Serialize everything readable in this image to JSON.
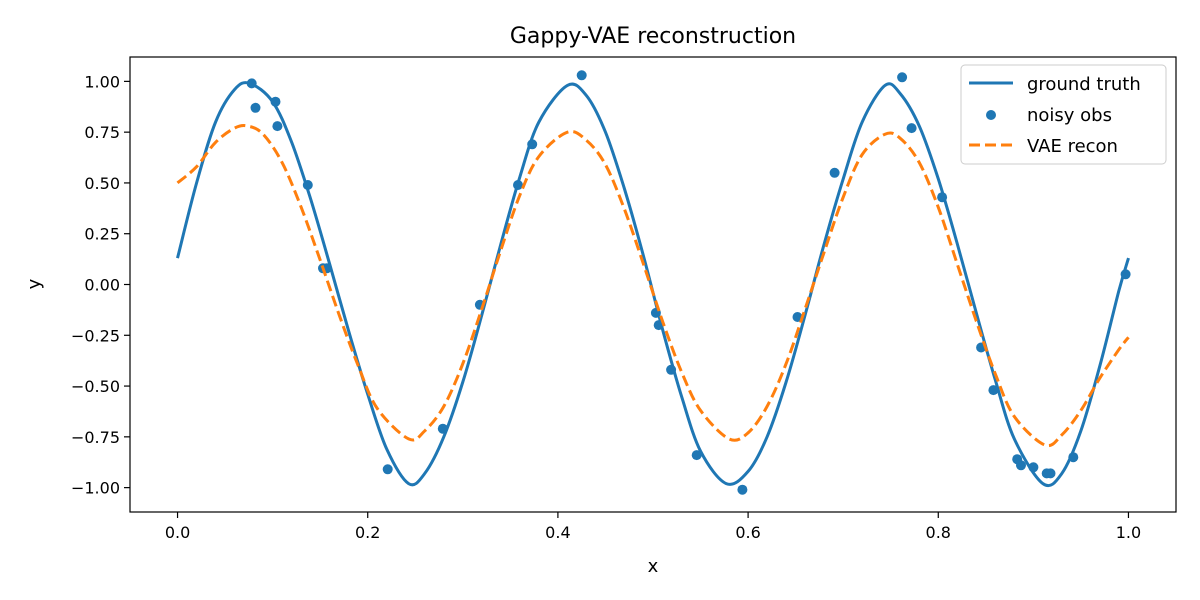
{
  "chart_data": {
    "type": "line",
    "title": "Gappy-VAE reconstruction",
    "xlabel": "x",
    "ylabel": "y",
    "xlim": [
      -0.05,
      1.05
    ],
    "ylim": [
      -1.12,
      1.12
    ],
    "x_ticks": [
      0.0,
      0.2,
      0.4,
      0.6,
      0.8,
      1.0
    ],
    "x_tick_labels": [
      "0.0",
      "0.2",
      "0.4",
      "0.6",
      "0.8",
      "1.0"
    ],
    "y_ticks": [
      -1.0,
      -0.75,
      -0.5,
      -0.25,
      0.0,
      0.25,
      0.5,
      0.75,
      1.0
    ],
    "y_tick_labels": [
      "−1.00",
      "−0.75",
      "−0.50",
      "−0.25",
      "0.00",
      "0.25",
      "0.50",
      "0.75",
      "1.00"
    ],
    "grid": false,
    "legend_position": "top-right",
    "series": [
      {
        "name": "ground truth",
        "kind": "line",
        "color": "#1f77b4",
        "style": "solid",
        "x": [
          0.0,
          0.02,
          0.04,
          0.06,
          0.076,
          0.1,
          0.12,
          0.14,
          0.16,
          0.18,
          0.2,
          0.22,
          0.243,
          0.26,
          0.28,
          0.3,
          0.32,
          0.34,
          0.36,
          0.38,
          0.41,
          0.43,
          0.45,
          0.47,
          0.49,
          0.51,
          0.53,
          0.55,
          0.577,
          0.6,
          0.62,
          0.64,
          0.66,
          0.68,
          0.7,
          0.72,
          0.744,
          0.76,
          0.78,
          0.8,
          0.82,
          0.84,
          0.86,
          0.88,
          0.91,
          0.93,
          0.95,
          0.97,
          0.99,
          1.0
        ],
        "y": [
          0.13,
          0.5,
          0.8,
          0.96,
          0.99,
          0.9,
          0.7,
          0.42,
          0.1,
          -0.23,
          -0.54,
          -0.81,
          -0.98,
          -0.93,
          -0.75,
          -0.48,
          -0.15,
          0.2,
          0.53,
          0.8,
          0.98,
          0.93,
          0.75,
          0.47,
          0.14,
          -0.22,
          -0.55,
          -0.82,
          -0.98,
          -0.92,
          -0.75,
          -0.48,
          -0.15,
          0.2,
          0.52,
          0.8,
          0.98,
          0.94,
          0.78,
          0.52,
          0.2,
          -0.14,
          -0.47,
          -0.76,
          -0.98,
          -0.93,
          -0.72,
          -0.4,
          -0.03,
          0.13
        ]
      },
      {
        "name": "noisy obs",
        "kind": "scatter",
        "color": "#1f77b4",
        "x": [
          0.078,
          0.082,
          0.103,
          0.105,
          0.137,
          0.153,
          0.157,
          0.221,
          0.279,
          0.318,
          0.358,
          0.373,
          0.425,
          0.503,
          0.506,
          0.519,
          0.546,
          0.594,
          0.652,
          0.691,
          0.762,
          0.772,
          0.804,
          0.845,
          0.858,
          0.883,
          0.887,
          0.9,
          0.914,
          0.918,
          0.942,
          0.997
        ],
        "y": [
          0.99,
          0.87,
          0.9,
          0.78,
          0.49,
          0.08,
          0.08,
          -0.91,
          -0.71,
          -0.1,
          0.49,
          0.69,
          1.03,
          -0.14,
          -0.2,
          -0.42,
          -0.84,
          -1.01,
          -0.16,
          0.55,
          1.02,
          0.77,
          0.43,
          -0.31,
          -0.52,
          -0.86,
          -0.89,
          -0.9,
          -0.93,
          -0.93,
          -0.85,
          0.05
        ]
      },
      {
        "name": "VAE recon",
        "kind": "line",
        "color": "#ff7f0e",
        "style": "dashed",
        "x": [
          0.0,
          0.02,
          0.04,
          0.06,
          0.074,
          0.09,
          0.11,
          0.13,
          0.15,
          0.17,
          0.19,
          0.21,
          0.243,
          0.26,
          0.28,
          0.3,
          0.32,
          0.34,
          0.36,
          0.38,
          0.41,
          0.43,
          0.45,
          0.47,
          0.49,
          0.51,
          0.53,
          0.55,
          0.58,
          0.6,
          0.62,
          0.64,
          0.66,
          0.68,
          0.7,
          0.72,
          0.744,
          0.76,
          0.78,
          0.8,
          0.82,
          0.84,
          0.86,
          0.88,
          0.912,
          0.93,
          0.95,
          0.97,
          0.99,
          1.0
        ],
        "y": [
          0.5,
          0.58,
          0.7,
          0.77,
          0.78,
          0.74,
          0.6,
          0.38,
          0.12,
          -0.15,
          -0.4,
          -0.61,
          -0.76,
          -0.72,
          -0.6,
          -0.39,
          -0.12,
          0.17,
          0.44,
          0.63,
          0.75,
          0.71,
          0.59,
          0.37,
          0.1,
          -0.18,
          -0.43,
          -0.62,
          -0.76,
          -0.73,
          -0.6,
          -0.39,
          -0.12,
          0.16,
          0.43,
          0.64,
          0.74,
          0.72,
          0.6,
          0.38,
          0.1,
          -0.18,
          -0.44,
          -0.65,
          -0.79,
          -0.74,
          -0.62,
          -0.46,
          -0.32,
          -0.26
        ]
      }
    ]
  }
}
